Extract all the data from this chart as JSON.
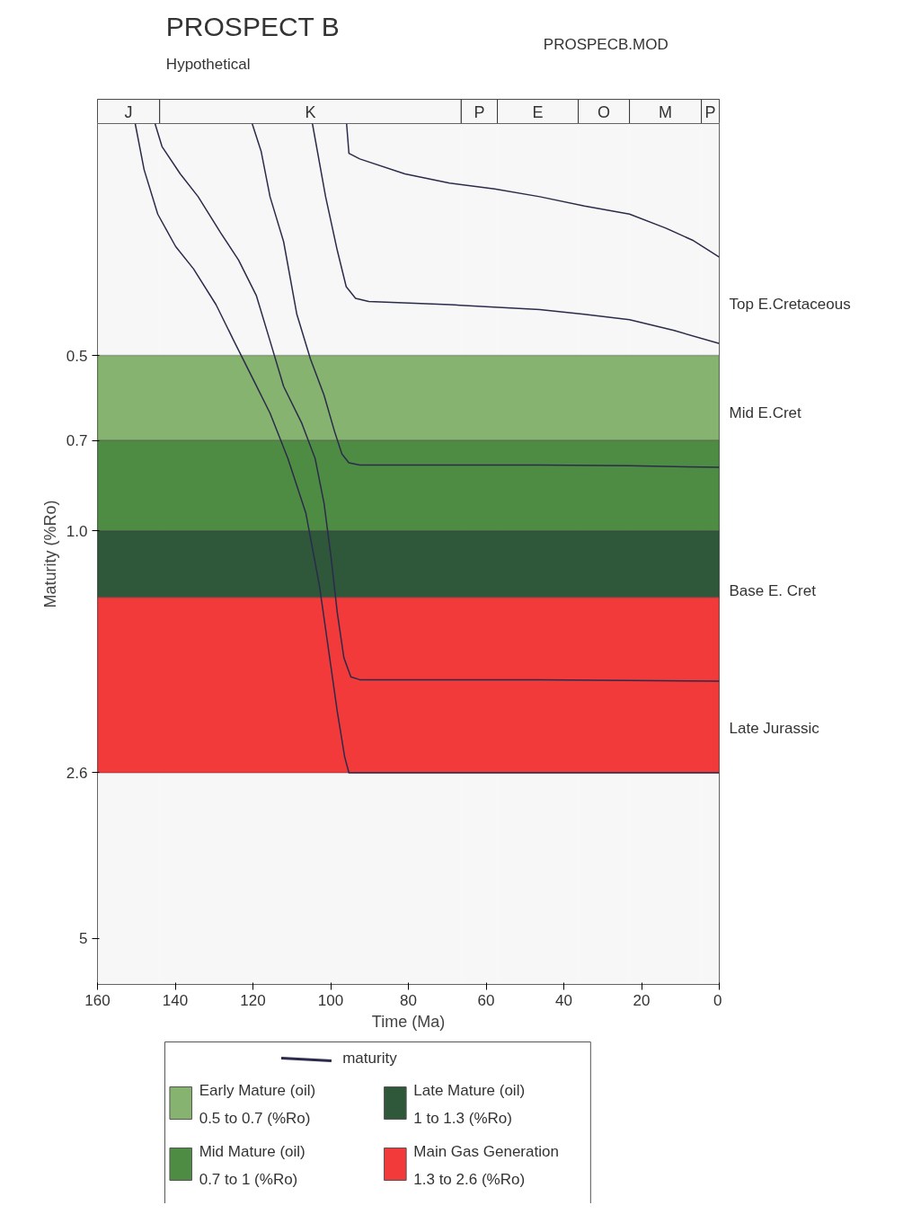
{
  "chart_data": {
    "type": "line",
    "title": "PROSPECT B",
    "subtitle": "Hypothetical",
    "xlabel": "Time (Ma)",
    "ylabel": "Maturity (%Ro)",
    "log": "y",
    "xlim": [
      160,
      0
    ],
    "ylim": [
      6,
      0.2
    ],
    "xticks": [
      160,
      140,
      120,
      100,
      80,
      60,
      40,
      20,
      0
    ],
    "yticks": [
      0.5,
      0.7,
      {
        "value": 1,
        "label": "1.0"
      },
      2.6,
      5
    ],
    "grid": false,
    "legend": "bottom",
    "line_style": "solid",
    "marker": "none",
    "series": [
      {
        "name": "maturity",
        "color": "#2b2b4b",
        "x": [
          95.9,
          95.3,
          92.5,
          80.9,
          69.4,
          57.8,
          46.2,
          34.7,
          23.1,
          13.9,
          6.9,
          0
        ],
        "values": [
          0.2,
          0.225,
          0.23,
          0.244,
          0.253,
          0.259,
          0.267,
          0.277,
          0.286,
          0.302,
          0.317,
          0.339
        ]
      },
      {
        "color": "#2b2b4b",
        "x": [
          104.7,
          101.3,
          98.3,
          96.0,
          93.6,
          90.2,
          69.4,
          46.2,
          34.7,
          23.1,
          11.6,
          0
        ],
        "values": [
          0.2,
          0.267,
          0.33,
          0.381,
          0.399,
          0.404,
          0.409,
          0.417,
          0.425,
          0.434,
          0.453,
          0.477
        ]
      },
      {
        "color": "#2b2b4b",
        "x": [
          120.2,
          117.9,
          115.6,
          112.1,
          108.7,
          105.2,
          101.7,
          99.0,
          97.1,
          95.3,
          92.5,
          69.4,
          46.2,
          23.1,
          0
        ],
        "values": [
          0.2,
          0.223,
          0.267,
          0.319,
          0.425,
          0.507,
          0.585,
          0.675,
          0.738,
          0.764,
          0.771,
          0.771,
          0.771,
          0.773,
          0.778
        ]
      },
      {
        "color": "#2b2b4b",
        "x": [
          145.2,
          143.4,
          138.7,
          134.1,
          128.3,
          123.7,
          119.1,
          115.6,
          112.1,
          107.5,
          104.0,
          101.7,
          99.9,
          98.3,
          96.6,
          94.8,
          92.5,
          46.2,
          0
        ],
        "values": [
          0.2,
          0.219,
          0.244,
          0.267,
          0.308,
          0.343,
          0.395,
          0.472,
          0.565,
          0.652,
          0.751,
          0.897,
          1.11,
          1.38,
          1.65,
          1.78,
          1.8,
          1.8,
          1.81
        ]
      },
      {
        "color": "#2b2b4b",
        "x": [
          150.3,
          148.0,
          144.5,
          139.9,
          135.3,
          129.5,
          124.9,
          120.2,
          115.6,
          111.0,
          106.4,
          102.9,
          100.6,
          98.3,
          96.4,
          95.3,
          0
        ],
        "values": [
          0.2,
          0.24,
          0.286,
          0.325,
          0.355,
          0.409,
          0.472,
          0.545,
          0.628,
          0.751,
          0.931,
          1.24,
          1.59,
          2.04,
          2.44,
          2.6,
          2.6
        ]
      }
    ],
    "bands": [
      {
        "axis": "y",
        "from": 0.5,
        "to": 0.7,
        "color": "#86b36f",
        "label": "Early Mature (oil)\n0.5 to 0.7 (%Ro)"
      },
      {
        "axis": "y",
        "from": 0.7,
        "to": 1.0,
        "color": "#4f8c43",
        "label": "Mid Mature (oil)\n0.7 to 1 (%Ro)"
      },
      {
        "axis": "y",
        "from": 1.0,
        "to": 1.3,
        "color": "#2f573a",
        "label": "Late Mature (oil)\n1 to 1.3 (%Ro)"
      },
      {
        "axis": "y",
        "from": 1.3,
        "to": 2.6,
        "color": "#f23a3a",
        "label": "Main Gas Generation\n1.3 to 2.6 (%Ro)"
      },
      {
        "axis": "x",
        "from": 160,
        "to": 144,
        "color": "#f7f7f7",
        "label": "J"
      },
      {
        "axis": "x",
        "from": 144,
        "to": 66.4,
        "color": "#f7f7f7",
        "label": "K"
      },
      {
        "axis": "x",
        "from": 66.4,
        "to": 57.1,
        "color": "#f7f7f7",
        "label": "P"
      },
      {
        "axis": "x",
        "from": 57.1,
        "to": 36.3,
        "color": "#f7f7f7",
        "label": "E"
      },
      {
        "axis": "x",
        "from": 36.3,
        "to": 23.1,
        "color": "#f7f7f7",
        "label": "O"
      },
      {
        "axis": "x",
        "from": 23.1,
        "to": 4.6,
        "color": "#f7f7f7",
        "label": "M"
      },
      {
        "axis": "x",
        "from": 4.6,
        "to": 0,
        "color": "#f7f7f7",
        "label": "P"
      }
    ],
    "annotations": [
      "PROSPECB.MOD",
      "Top E.Cretaceous",
      "Mid E.Cret",
      "Base E. Cret",
      "Late Jurassic"
    ]
  }
}
